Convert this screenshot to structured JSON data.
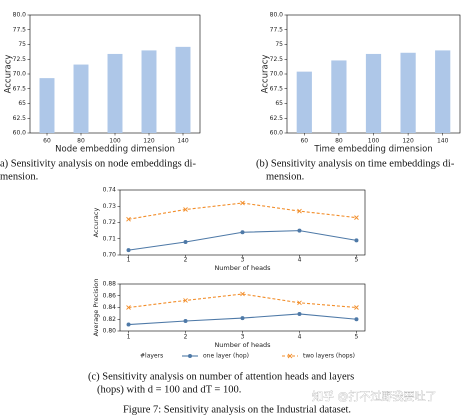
{
  "chart_data": [
    {
      "type": "bar",
      "ylabel": "Accuracy",
      "xlabel": "Node embedding dimension",
      "categories": [
        "60",
        "80",
        "100",
        "120",
        "140"
      ],
      "values": [
        69.3,
        71.6,
        73.4,
        74.0,
        74.6
      ],
      "color": "#aec7e8",
      "ylim": [
        60,
        80
      ],
      "yticks": [
        {
          "value": 60,
          "label": "60.0"
        },
        62.5,
        65.0,
        67.5,
        {
          "value": 70,
          "label": "70.0"
        },
        72.5,
        75.0,
        77.5,
        {
          "value": 80,
          "label": "80.0"
        }
      ]
    },
    {
      "type": "bar",
      "ylabel": "Accuracy",
      "xlabel": "Time embedding dimension",
      "categories": [
        "60",
        "80",
        "100",
        "120",
        "140"
      ],
      "values": [
        70.4,
        72.3,
        73.4,
        73.6,
        74.0
      ],
      "color": "#aec7e8",
      "ylim": [
        60,
        80
      ],
      "yticks": [
        {
          "value": 60,
          "label": "60.0"
        },
        62.5,
        65.0,
        67.5,
        {
          "value": 70,
          "label": "70.0"
        },
        72.5,
        75.0,
        77.5,
        {
          "value": 80,
          "label": "80.0"
        }
      ]
    },
    {
      "type": "line",
      "ylabel": "Accuracy",
      "xlabel": "Number of heads",
      "x": [
        1,
        2,
        3,
        4,
        5
      ],
      "xlim": [
        0.85,
        5.15
      ],
      "xticks": [
        1,
        2,
        3,
        4,
        5
      ],
      "ylim": [
        0.7,
        0.74
      ],
      "yticks": [
        {
          "value": 0.7,
          "label": "0.70"
        },
        0.71,
        0.72,
        0.73,
        0.74
      ],
      "series": [
        {
          "name": "one layer (hop)",
          "color": "#4e79a7",
          "dashed": false,
          "marker": "circle",
          "values": [
            0.703,
            0.708,
            0.714,
            0.715,
            0.709
          ]
        },
        {
          "name": "two layers (hops)",
          "color": "#f28e2b",
          "dashed": true,
          "marker": "x",
          "values": [
            0.722,
            0.728,
            0.732,
            0.727,
            0.723
          ]
        }
      ]
    },
    {
      "type": "line",
      "ylabel": "Average Precision",
      "xlabel": "Number of heads",
      "legend_title": "#layers",
      "x": [
        1,
        2,
        3,
        4,
        5
      ],
      "xlim": [
        0.85,
        5.15
      ],
      "xticks": [
        1,
        2,
        3,
        4,
        5
      ],
      "ylim": [
        0.8,
        0.88
      ],
      "yticks": [
        {
          "value": 0.8,
          "label": "0.80"
        },
        0.82,
        0.84,
        0.86,
        0.88
      ],
      "series": [
        {
          "name": "one layer (hop)",
          "color": "#4e79a7",
          "dashed": false,
          "marker": "circle",
          "values": [
            0.811,
            0.817,
            0.822,
            0.829,
            0.82
          ]
        },
        {
          "name": "two layers (hops)",
          "color": "#f28e2b",
          "dashed": true,
          "marker": "x",
          "values": [
            0.84,
            0.852,
            0.863,
            0.848,
            0.84
          ]
        }
      ]
    }
  ],
  "captions": [
    [
      "a) Sensitivity analysis on node embeddings di-",
      "mension."
    ],
    [
      "(b) Sensitivity analysis on time embeddings di-",
      "mension."
    ],
    [
      "(c) Sensitivity analysis on number of attention heads and layers",
      "(hops) with d = 100 and dT = 100."
    ]
  ],
  "figure_caption": "Figure 7: Sensitivity analysis on the Industrial dataset.",
  "watermark": "知乎 @打不过野我要吐了"
}
